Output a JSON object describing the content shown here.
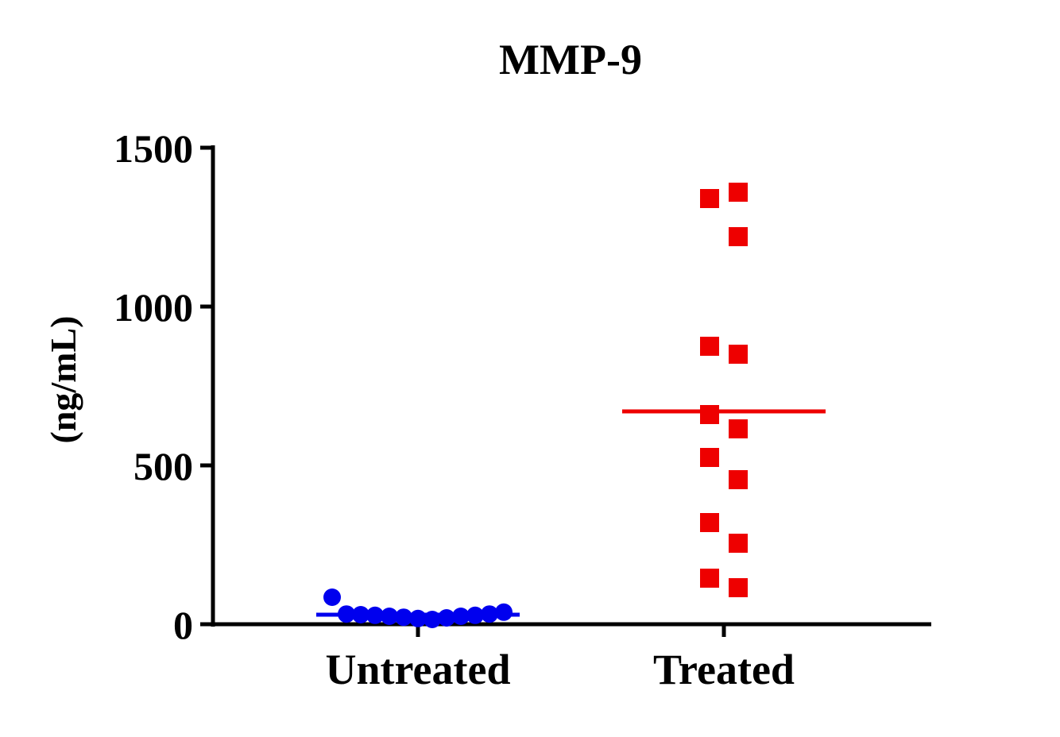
{
  "chart_data": {
    "type": "scatter",
    "title": "MMP-9",
    "xlabel": "",
    "ylabel": "(ng/mL)",
    "ylim": [
      0,
      1500
    ],
    "yticks": [
      "0",
      "500",
      "1000",
      "1500"
    ],
    "categories": [
      "Untreated",
      "Treated"
    ],
    "grid": false,
    "series": [
      {
        "category": "Untreated",
        "marker": "circle",
        "color": "#0000ee",
        "values": [
          85,
          32,
          30,
          28,
          25,
          22,
          18,
          15,
          20,
          25,
          28,
          32,
          38
        ],
        "mean": 30
      },
      {
        "category": "Treated",
        "marker": "square",
        "color": "#ee0000",
        "values": [
          1360,
          1340,
          1220,
          875,
          850,
          660,
          615,
          525,
          455,
          320,
          255,
          145,
          115
        ],
        "mean": 670
      }
    ]
  }
}
